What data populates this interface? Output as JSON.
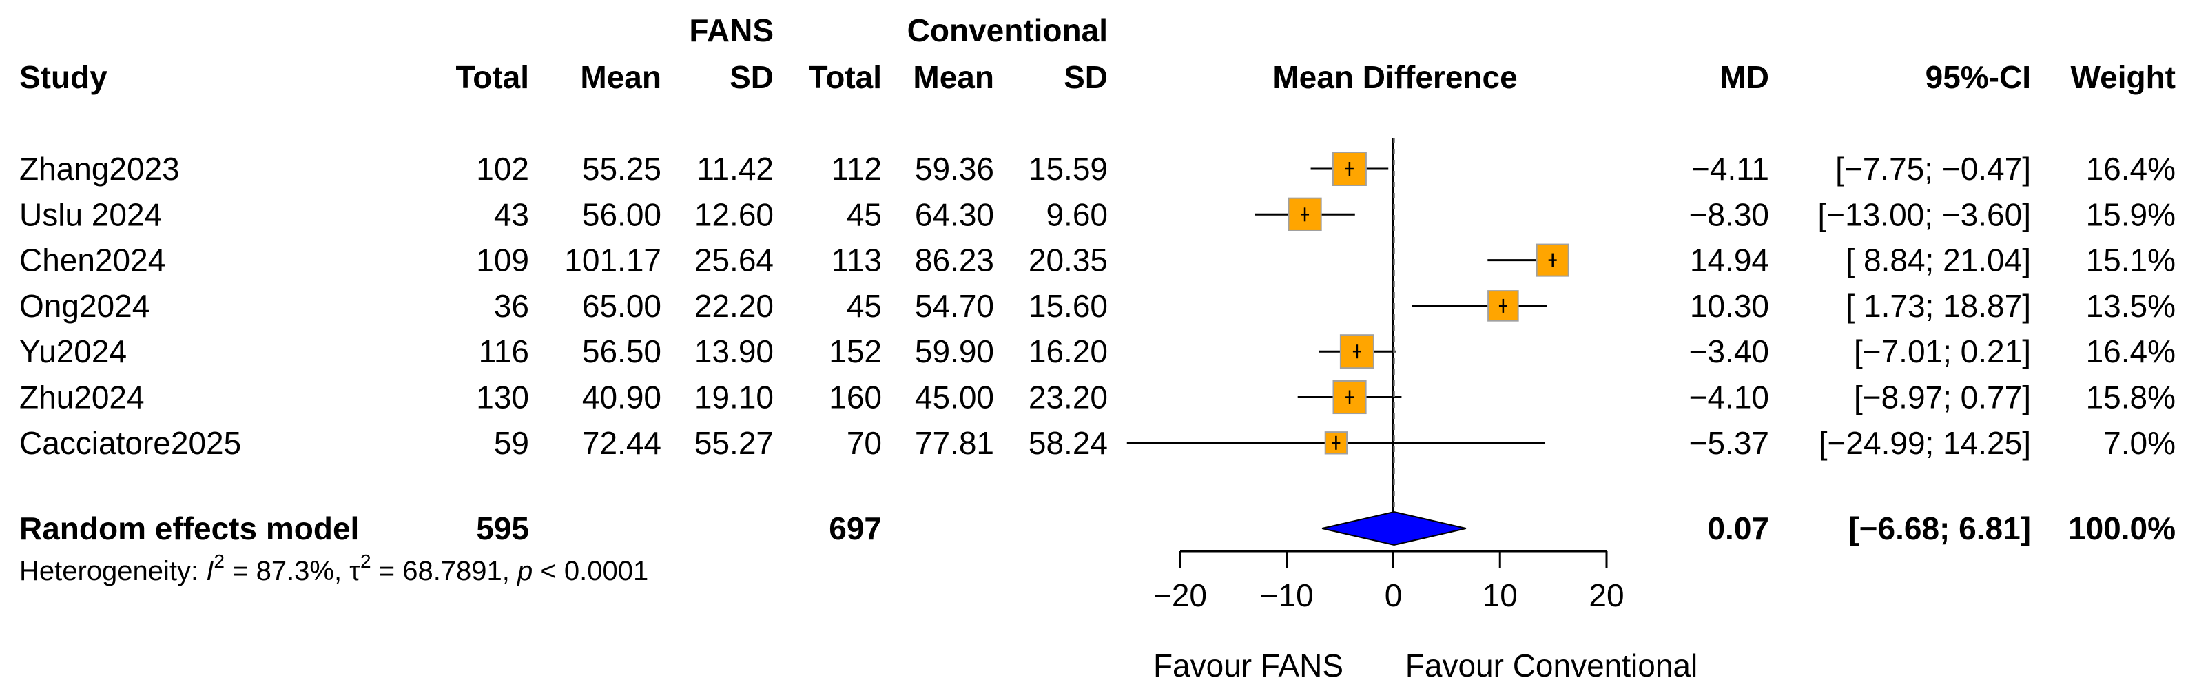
{
  "chart_data": {
    "type": "forest",
    "measure_label": "Mean Difference",
    "group_labels": {
      "experimental": "FANS",
      "control": "Conventional"
    },
    "column_headers": {
      "study": "Study",
      "exp_total": "Total",
      "exp_mean": "Mean",
      "exp_sd": "SD",
      "ctl_total": "Total",
      "ctl_mean": "Mean",
      "ctl_sd": "SD",
      "md": "MD",
      "ci": "95%-CI",
      "weight": "Weight"
    },
    "studies": [
      {
        "study": "Zhang2023",
        "exp_total": "102",
        "exp_mean": "55.25",
        "exp_sd": "11.42",
        "ctl_total": "112",
        "ctl_mean": "59.36",
        "ctl_sd": "15.59",
        "md": -4.11,
        "ci_low": -7.75,
        "ci_high": -0.47,
        "weight": 16.4,
        "md_text": "−4.11",
        "ci_text": "[−7.75; −0.47]",
        "weight_text": "16.4%"
      },
      {
        "study": "Uslu 2024",
        "exp_total": "43",
        "exp_mean": "56.00",
        "exp_sd": "12.60",
        "ctl_total": "45",
        "ctl_mean": "64.30",
        "ctl_sd": "9.60",
        "md": -8.3,
        "ci_low": -13.0,
        "ci_high": -3.6,
        "weight": 15.9,
        "md_text": "−8.30",
        "ci_text": "[−13.00; −3.60]",
        "weight_text": "15.9%"
      },
      {
        "study": "Chen2024",
        "exp_total": "109",
        "exp_mean": "101.17",
        "exp_sd": "25.64",
        "ctl_total": "113",
        "ctl_mean": "86.23",
        "ctl_sd": "20.35",
        "md": 14.94,
        "ci_low": 8.84,
        "ci_high": 21.04,
        "weight": 15.1,
        "md_text": "14.94",
        "ci_text": "[ 8.84; 21.04]",
        "weight_text": "15.1%"
      },
      {
        "study": "Ong2024",
        "exp_total": "36",
        "exp_mean": "65.00",
        "exp_sd": "22.20",
        "ctl_total": "45",
        "ctl_mean": "54.70",
        "ctl_sd": "15.60",
        "md": 10.3,
        "ci_low": 1.73,
        "ci_high": 18.87,
        "weight": 13.5,
        "md_text": "10.30",
        "ci_text": "[ 1.73; 18.87]",
        "weight_text": "13.5%"
      },
      {
        "study": "Yu2024",
        "exp_total": "116",
        "exp_mean": "56.50",
        "exp_sd": "13.90",
        "ctl_total": "152",
        "ctl_mean": "59.90",
        "ctl_sd": "16.20",
        "md": -3.4,
        "ci_low": -7.01,
        "ci_high": 0.21,
        "weight": 16.4,
        "md_text": "−3.40",
        "ci_text": "[−7.01; 0.21]",
        "weight_text": "16.4%"
      },
      {
        "study": "Zhu2024",
        "exp_total": "130",
        "exp_mean": "40.90",
        "exp_sd": "19.10",
        "ctl_total": "160",
        "ctl_mean": "45.00",
        "ctl_sd": "23.20",
        "md": -4.1,
        "ci_low": -8.97,
        "ci_high": 0.77,
        "weight": 15.8,
        "md_text": "−4.10",
        "ci_text": "[−8.97; 0.77]",
        "weight_text": "15.8%"
      },
      {
        "study": "Cacciatore2025",
        "exp_total": "59",
        "exp_mean": "72.44",
        "exp_sd": "55.27",
        "ctl_total": "70",
        "ctl_mean": "77.81",
        "ctl_sd": "58.24",
        "md": -5.37,
        "ci_low": -24.99,
        "ci_high": 14.25,
        "weight": 7.0,
        "md_text": "−5.37",
        "ci_text": "[−24.99; 14.25]",
        "weight_text": "7.0%"
      }
    ],
    "pooled": {
      "label": "Random effects model",
      "exp_total": "595",
      "ctl_total": "697",
      "md": 0.07,
      "ci_low": -6.68,
      "ci_high": 6.81,
      "md_text": "0.07",
      "ci_text": "[−6.68; 6.81]",
      "weight_text": "100.0%"
    },
    "heterogeneity": {
      "prefix": "Heterogeneity: ",
      "i2_symbol": "I",
      "i2_sup": "2",
      "i2_value": " = 87.3%, ",
      "tau_symbol": "τ",
      "tau_sup": "2",
      "tau_value": " = 68.7891, ",
      "p_symbol": "p",
      "p_value": " < 0.0001"
    },
    "x_axis": {
      "range": [
        -20,
        20
      ],
      "ticks": [
        -20,
        -10,
        0,
        10,
        20
      ],
      "tick_labels": [
        "−20",
        "−10",
        "0",
        "10",
        "20"
      ],
      "left_label": "Favour FANS",
      "right_label": "Favour Conventional"
    },
    "colors": {
      "square": "#ffa500",
      "square_border": "#a0a0a0",
      "diamond": "#0000ff",
      "line": "#000000"
    }
  }
}
